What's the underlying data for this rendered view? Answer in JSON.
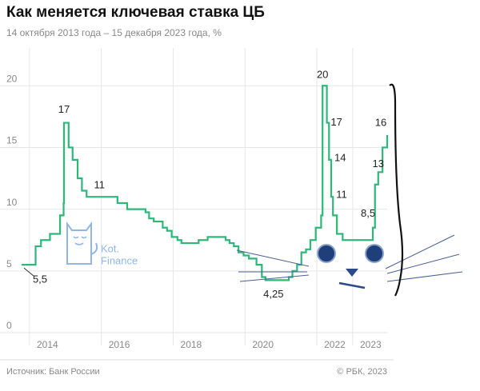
{
  "chart_data": {
    "type": "line",
    "title": "Как меняется ключевая ставка ЦБ",
    "subtitle": "14 октября 2013 года – 15 декабря 2023 года, %",
    "source": "Источник: Банк России",
    "credit": "© РБК, 2023",
    "watermark": [
      "Kot.",
      "Finance"
    ],
    "x": [
      2013.78,
      2014.17,
      2014.32,
      2014.57,
      2014.85,
      2014.95,
      2014.96,
      2015.09,
      2015.2,
      2015.34,
      2015.46,
      2015.59,
      2016.45,
      2016.72,
      2017.23,
      2017.33,
      2017.46,
      2017.71,
      2017.83,
      2017.96,
      2018.12,
      2018.23,
      2018.71,
      2018.96,
      2019.46,
      2019.57,
      2019.69,
      2019.82,
      2019.96,
      2020.11,
      2020.32,
      2020.47,
      2020.57,
      2021.22,
      2021.32,
      2021.45,
      2021.57,
      2021.7,
      2021.82,
      2021.97,
      2022.12,
      2022.16,
      2022.28,
      2022.34,
      2022.4,
      2022.45,
      2022.56,
      2022.72,
      2023.56,
      2023.62,
      2023.71,
      2023.83,
      2023.96
    ],
    "series": [
      {
        "name": "Ключевая ставка",
        "color": "#2db87a",
        "values": [
          5.5,
          7,
          7.5,
          8,
          9.5,
          10.5,
          17,
          15,
          14,
          12.5,
          11.5,
          11,
          10.5,
          10,
          9.75,
          9.25,
          9,
          8.5,
          8.25,
          7.75,
          7.5,
          7.25,
          7.5,
          7.75,
          7.5,
          7.25,
          7,
          6.5,
          6.25,
          6,
          5.5,
          4.5,
          4.25,
          4.5,
          5,
          5.5,
          6.5,
          6.75,
          7.5,
          8.5,
          9.5,
          20,
          17,
          14,
          11,
          9.5,
          8,
          7.5,
          8.5,
          12,
          13,
          15,
          16
        ],
        "value_labels": [
          "5,5",
          null,
          null,
          null,
          null,
          null,
          "17",
          null,
          null,
          null,
          null,
          "11",
          null,
          null,
          null,
          null,
          null,
          null,
          null,
          null,
          null,
          null,
          null,
          null,
          null,
          null,
          null,
          null,
          null,
          null,
          null,
          null,
          "4,25",
          null,
          null,
          null,
          null,
          null,
          null,
          null,
          null,
          "20",
          "17",
          "14",
          "11",
          null,
          null,
          null,
          "8,5",
          null,
          "13",
          null,
          "16"
        ]
      }
    ],
    "xlim": [
      2013.78,
      2023.96
    ],
    "xticks": [
      2014,
      2016,
      2018,
      2020,
      2022,
      2023
    ],
    "ylim": [
      0,
      20.6
    ],
    "yticks": [
      0,
      5,
      10,
      15,
      20
    ],
    "grid": true
  }
}
